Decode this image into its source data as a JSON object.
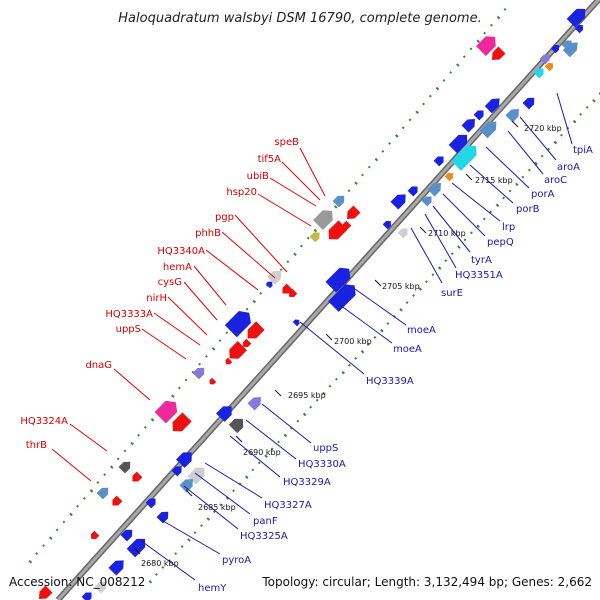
{
  "title": "Haloquadratum walsbyi DSM 16790, complete genome.",
  "footer": {
    "accession": "Accession: NC_008212",
    "summary": "Topology: circular; Length: 3,132,494 bp; Genes: 2,662"
  },
  "colors": {
    "backbone": "#8c8c8c",
    "forward_gc": "#2e8b2e",
    "reverse_gc": "#2e8b2e",
    "label_reverse": "#d40000",
    "label_forward": "#1a1aa8",
    "gene_red": "#ee1111",
    "gene_blue": "#1a22e0",
    "gene_steel": "#5a8fc8",
    "gene_grey": "#9a9a9a",
    "gene_silver": "#cfcfcf",
    "gene_dark": "#555555",
    "gene_pink": "#ee2a9a",
    "gene_cyan": "#22d8e8",
    "gene_orange": "#f08a18",
    "gene_purple": "#8a78d8",
    "gene_olive": "#c8b84a"
  },
  "ticks": [
    {
      "label": "2680 kbp"
    },
    {
      "label": "2685 kbp"
    },
    {
      "label": "2690 kbp"
    },
    {
      "label": "2695 kbp"
    },
    {
      "label": "2700 kbp"
    },
    {
      "label": "2705 kbp"
    },
    {
      "label": "2710 kbp"
    },
    {
      "label": "2715 kbp"
    },
    {
      "label": "2720 kbp"
    }
  ],
  "reverse_labels": [
    {
      "text": "speB"
    },
    {
      "text": "tif5A"
    },
    {
      "text": "ubiB"
    },
    {
      "text": "hsp20"
    },
    {
      "text": "pgp"
    },
    {
      "text": "phhB"
    },
    {
      "text": "HQ3340A"
    },
    {
      "text": "hemA"
    },
    {
      "text": "cysG"
    },
    {
      "text": "nirH"
    },
    {
      "text": "HQ3333A"
    },
    {
      "text": "uppS"
    },
    {
      "text": "dnaG"
    },
    {
      "text": "HQ3324A"
    },
    {
      "text": "thrB"
    }
  ],
  "forward_labels": [
    {
      "text": "tpiA"
    },
    {
      "text": "aroA"
    },
    {
      "text": "aroC"
    },
    {
      "text": "porA"
    },
    {
      "text": "porB"
    },
    {
      "text": "lrp"
    },
    {
      "text": "pepQ"
    },
    {
      "text": "tyrA"
    },
    {
      "text": "HQ3351A"
    },
    {
      "text": "surE"
    },
    {
      "text": "moeA"
    },
    {
      "text": "moeA"
    },
    {
      "text": "HQ3339A"
    },
    {
      "text": "uppS"
    },
    {
      "text": "HQ3330A"
    },
    {
      "text": "HQ3329A"
    },
    {
      "text": "HQ3327A"
    },
    {
      "text": "panF"
    },
    {
      "text": "HQ3325A"
    },
    {
      "text": "pyroA"
    },
    {
      "text": "hemY"
    }
  ]
}
